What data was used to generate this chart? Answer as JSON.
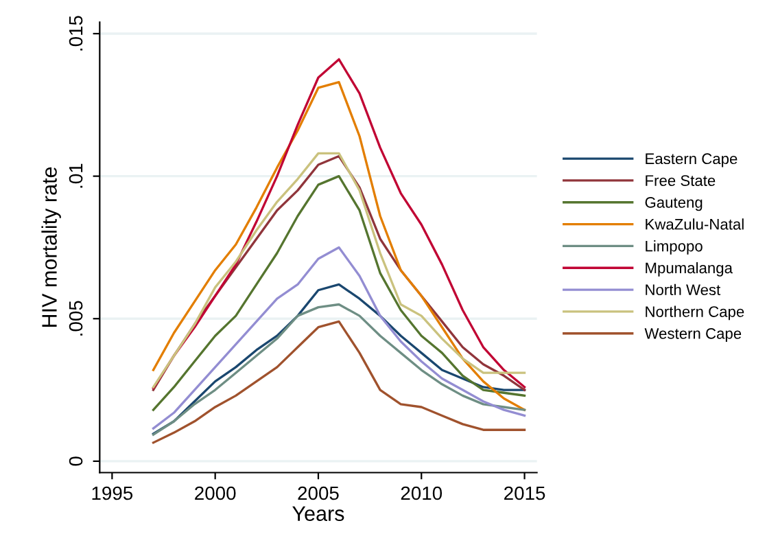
{
  "chart_data": {
    "type": "line",
    "xlabel": "Years",
    "ylabel": "HIV mortality rate",
    "x": [
      1997,
      1998,
      1999,
      2000,
      2001,
      2002,
      2003,
      2004,
      2005,
      2006,
      2007,
      2008,
      2009,
      2010,
      2011,
      2012,
      2013,
      2014,
      2015
    ],
    "series": [
      {
        "name": "Eastern Cape",
        "color": "#1a476f",
        "values": [
          0.00096,
          0.0014,
          0.0021,
          0.0028,
          0.0033,
          0.0039,
          0.0044,
          0.0051,
          0.006,
          0.0062,
          0.0057,
          0.0051,
          0.0044,
          0.0038,
          0.0032,
          0.0029,
          0.0026,
          0.0025,
          0.0025
        ]
      },
      {
        "name": "Free State",
        "color": "#90353b",
        "values": [
          0.0025,
          0.0037,
          0.0048,
          0.0058,
          0.0068,
          0.0078,
          0.0088,
          0.0095,
          0.0104,
          0.0107,
          0.0096,
          0.0078,
          0.0067,
          0.0058,
          0.0049,
          0.004,
          0.0034,
          0.003,
          0.0025
        ]
      },
      {
        "name": "Gauteng",
        "color": "#55752f",
        "values": [
          0.0018,
          0.0026,
          0.0035,
          0.0044,
          0.0051,
          0.0062,
          0.0073,
          0.0086,
          0.0097,
          0.01,
          0.0088,
          0.0066,
          0.0053,
          0.0044,
          0.0038,
          0.003,
          0.0025,
          0.0024,
          0.0023
        ]
      },
      {
        "name": "KwaZulu-Natal",
        "color": "#e37e00",
        "values": [
          0.0032,
          0.0045,
          0.0056,
          0.0067,
          0.0076,
          0.0089,
          0.0103,
          0.0116,
          0.0131,
          0.0133,
          0.0114,
          0.0086,
          0.0067,
          0.0058,
          0.0047,
          0.0036,
          0.0028,
          0.0022,
          0.0018
        ]
      },
      {
        "name": "Limpopo",
        "color": "#6e8e84",
        "values": [
          0.00093,
          0.0014,
          0.002,
          0.0025,
          0.0031,
          0.0037,
          0.0043,
          0.0051,
          0.0054,
          0.0055,
          0.0051,
          0.0044,
          0.0038,
          0.0032,
          0.0027,
          0.0023,
          0.002,
          0.0019,
          0.0018
        ]
      },
      {
        "name": "Mpumalanga",
        "color": "#c10534",
        "values": [
          0.00257,
          0.0037,
          0.0047,
          0.0058,
          0.0069,
          0.0084,
          0.01,
          0.0118,
          0.01346,
          0.0141,
          0.0129,
          0.011,
          0.0094,
          0.0083,
          0.0069,
          0.0053,
          0.004,
          0.0032,
          0.0026
        ]
      },
      {
        "name": "North West",
        "color": "#938dd2",
        "values": [
          0.00115,
          0.0017,
          0.0025,
          0.0033,
          0.0041,
          0.0049,
          0.0057,
          0.0062,
          0.0071,
          0.0075,
          0.0065,
          0.0051,
          0.0042,
          0.0035,
          0.0029,
          0.0025,
          0.0021,
          0.0018,
          0.0016
        ]
      },
      {
        "name": "Northern Cape",
        "color": "#cac27e",
        "values": [
          0.0026,
          0.0037,
          0.0048,
          0.0061,
          0.007,
          0.0081,
          0.0091,
          0.0099,
          0.0108,
          0.0108,
          0.0095,
          0.0073,
          0.0055,
          0.0051,
          0.0043,
          0.0036,
          0.0031,
          0.0031,
          0.0031
        ]
      },
      {
        "name": "Western Cape",
        "color": "#a0522d",
        "values": [
          0.00065,
          0.001,
          0.0014,
          0.0019,
          0.0023,
          0.0028,
          0.0033,
          0.004,
          0.0047,
          0.0049,
          0.0038,
          0.0025,
          0.002,
          0.0019,
          0.0016,
          0.0013,
          0.0011,
          0.0011,
          0.0011
        ]
      }
    ],
    "xlim": [
      1994.4,
      2015.6
    ],
    "xticks": [
      1995,
      2000,
      2005,
      2010,
      2015
    ],
    "ylim": [
      -0.0004,
      0.0154
    ],
    "yticks": [
      {
        "value": 0,
        "label": "0"
      },
      {
        "value": 0.005,
        "label": ".005"
      },
      {
        "value": 0.01,
        "label": ".01"
      },
      {
        "value": 0.015,
        "label": ".015"
      }
    ],
    "grid": "y",
    "legend": "right",
    "line_style": "solid",
    "marker": "none"
  }
}
